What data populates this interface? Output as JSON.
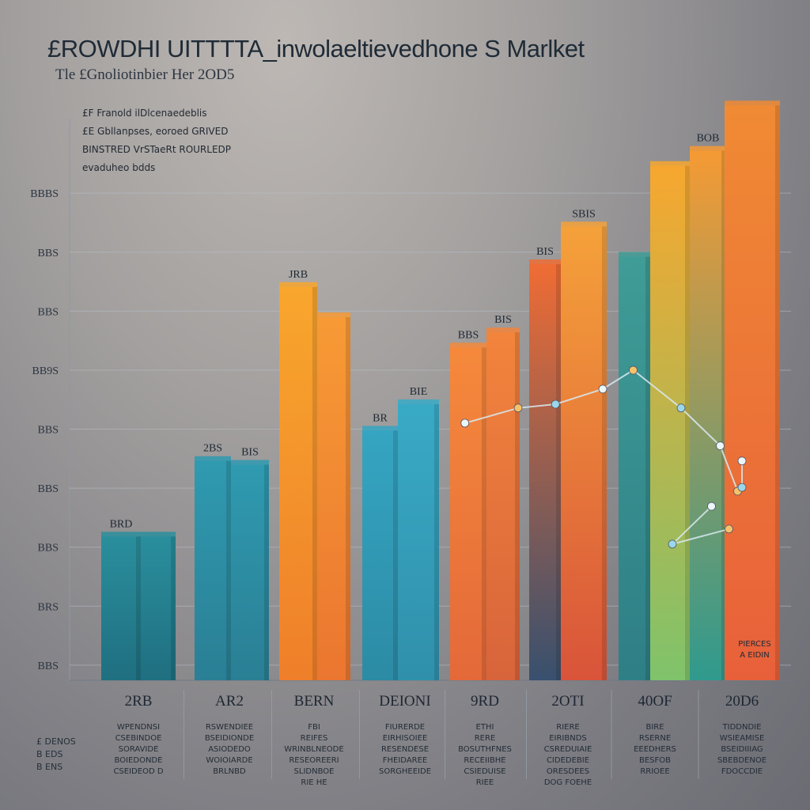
{
  "chart_data": {
    "type": "bar",
    "title": "£ROWDHI UITTTTA_inwolaeltievedhone S Marlket",
    "subtitle": "Tle £Gnoliotinbier Her 2OD5",
    "notes": [
      "£F Franold ilDlcenaedeblis",
      "£E Gbllanpses, eoroed GRIVED",
      "BINSTRED VrSTaeRt ROURLEDP",
      "evaduheo bdds"
    ],
    "yticks": [
      "BBBS",
      "BBS",
      "BBS",
      "BB9S",
      "BBS",
      "BBS",
      "BBS",
      "BRS",
      "BBS"
    ],
    "categories": [
      "2RB",
      "AR2",
      "BERN",
      "DEIONI",
      "9RD",
      "2OTI",
      "40OF",
      "20D6"
    ],
    "descriptions": [
      [
        "WPENDNSI",
        "CSEBINDOE",
        "SORAVIDE",
        "BOIEDONDE",
        "CSEIDEOD D"
      ],
      [
        "RSWENDIEE",
        "BSEIDIONDE",
        "ASIODEDO",
        "WOIOIARDE",
        "BRLNBD"
      ],
      [
        "FBI",
        "REIFES",
        "WRINBLNEODE",
        "RESEOREERI",
        "SLIDNBOE",
        "RIE HE"
      ],
      [
        "FIURERDE",
        "EIRHISOIEE",
        "RESENDESE",
        "FHEIDAREE",
        "SORGHEEIDE"
      ],
      [
        "ETHI",
        "RERE",
        "BOSUTHFNES",
        "RECEIIBHE",
        "CSIEDUISE",
        "RIEE"
      ],
      [
        "RIERE",
        "EIRIBNDS",
        "CSREDUIAIE",
        "CIDEDEBIE",
        "ORESDEES",
        "DOG FOEHE"
      ],
      [
        "BIRE",
        "RSERNE",
        "EEEDHERS",
        "BESFOB",
        "RRIOEE"
      ],
      [
        "TIDDNDIE",
        "WSIEAMISE",
        "BSEIDIIIAG",
        "SBEBDENOE",
        "FDOCCDIE"
      ]
    ],
    "bars": [
      {
        "group": 0,
        "value": 190,
        "label": "BRD",
        "colors": [
          "#2a8e9c",
          "#1f6f80"
        ]
      },
      {
        "group": 0,
        "value": 190,
        "label": "",
        "colors": [
          "#2a8e9c",
          "#1f6f80"
        ]
      },
      {
        "group": 1,
        "value": 290,
        "label": "2BS",
        "colors": [
          "#2f9ab0",
          "#2a7f94"
        ]
      },
      {
        "group": 1,
        "value": 285,
        "label": "BIS",
        "colors": [
          "#2f9ab0",
          "#2a7f94"
        ]
      },
      {
        "group": 2,
        "value": 520,
        "label": "JRB",
        "colors": [
          "#f8a62d",
          "#ef7f2a"
        ]
      },
      {
        "group": 2,
        "value": 480,
        "label": "",
        "colors": [
          "#f79a35",
          "#eb7630"
        ]
      },
      {
        "group": 3,
        "value": 330,
        "label": "BR",
        "colors": [
          "#35a5c2",
          "#2c8ba5"
        ]
      },
      {
        "group": 3,
        "value": 365,
        "label": "BIE",
        "colors": [
          "#39aac6",
          "#3090ab"
        ]
      },
      {
        "group": 4,
        "value": 440,
        "label": "BBS",
        "colors": [
          "#f5893b",
          "#e4693a"
        ]
      },
      {
        "group": 4,
        "value": 460,
        "label": "BIS",
        "colors": [
          "#f2843c",
          "#d8643b"
        ]
      },
      {
        "group": 5,
        "value": 550,
        "label": "BIS",
        "colors": [
          "#ef6c34",
          "#38506e"
        ]
      },
      {
        "group": 5,
        "value": 600,
        "label": "SBIS",
        "colors": [
          "#f5a13a",
          "#d9543a"
        ]
      },
      {
        "group": 6,
        "value": 560,
        "label": "",
        "colors": [
          "#3f9c96",
          "#2e7f86"
        ]
      },
      {
        "group": 6,
        "value": 680,
        "label": "",
        "colors": [
          "#f7a72f",
          "#7fc36b"
        ]
      },
      {
        "group": 6,
        "value": 700,
        "label": "BOB",
        "colors": [
          "#f59a34",
          "#2f9a8e"
        ]
      },
      {
        "group": 7,
        "value": 760,
        "label": "",
        "colors": [
          "#f08a34",
          "#e8603a"
        ]
      }
    ],
    "line_points": [
      [
        3.75,
        340
      ],
      [
        4.4,
        360
      ],
      [
        4.85,
        365
      ],
      [
        5.4,
        385
      ],
      [
        5.75,
        410
      ],
      [
        6.3,
        360
      ],
      [
        6.75,
        310
      ],
      [
        6.95,
        250
      ],
      [
        7.2,
        255
      ],
      [
        7.35,
        290
      ],
      [
        6.85,
        200
      ],
      [
        6.2,
        180
      ],
      [
        6.65,
        230
      ]
    ],
    "ylim": [
      0,
      800
    ],
    "legend": [
      "£ DENOS",
      "B EDS",
      "B ENS"
    ],
    "callout": [
      "PIERCES",
      "A EIDIN"
    ],
    "grid": true,
    "xlabel": "",
    "ylabel": ""
  }
}
